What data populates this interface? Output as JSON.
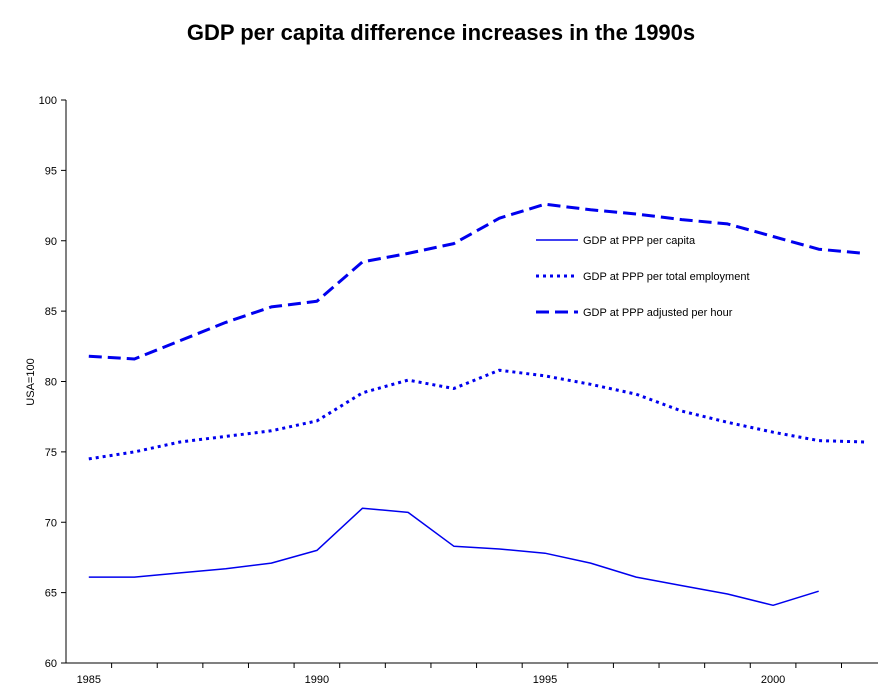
{
  "chart_data": {
    "type": "line",
    "title": "GDP per capita difference increases in the 1990s",
    "ylabel": "USA=100",
    "xlabel": "",
    "xlim": [
      1984.5,
      2002.3
    ],
    "ylim": [
      60,
      100
    ],
    "yticks": [
      60,
      65,
      70,
      75,
      80,
      85,
      90,
      95,
      100
    ],
    "xtick_labels": [
      1985,
      1990,
      1995,
      2000
    ],
    "xminor": [
      1985,
      1986,
      1987,
      1988,
      1989,
      1990,
      1991,
      1992,
      1993,
      1994,
      1995,
      1996,
      1997,
      1998,
      1999,
      2000,
      2001,
      2002
    ],
    "grid": false,
    "legend_position": "right",
    "series_color": "#0000ee",
    "series": [
      {
        "name": "GDP at PPP per capita",
        "style": "solid",
        "x": [
          1985,
          1986,
          1987,
          1988,
          1989,
          1990,
          1991,
          1992,
          1993,
          1994,
          1995,
          1996,
          1997,
          1998,
          1999,
          2000,
          2001
        ],
        "values": [
          66.1,
          66.1,
          66.4,
          66.7,
          67.1,
          68.0,
          71.0,
          70.7,
          68.3,
          68.1,
          67.8,
          67.1,
          66.1,
          65.5,
          64.9,
          64.1,
          65.1
        ]
      },
      {
        "name": "GDP at PPP per total employment",
        "style": "dotted",
        "x": [
          1985,
          1986,
          1987,
          1988,
          1989,
          1990,
          1991,
          1992,
          1993,
          1994,
          1995,
          1996,
          1997,
          1998,
          1999,
          2000,
          2001,
          2002
        ],
        "values": [
          74.5,
          75.0,
          75.7,
          76.1,
          76.5,
          77.2,
          79.2,
          80.1,
          79.5,
          80.8,
          80.4,
          79.8,
          79.1,
          77.9,
          77.1,
          76.4,
          75.8,
          75.7
        ]
      },
      {
        "name": "GDP at PPP adjusted per hour",
        "style": "dashed",
        "x": [
          1985,
          1986,
          1987,
          1988,
          1989,
          1990,
          1991,
          1992,
          1993,
          1994,
          1995,
          1996,
          1997,
          1998,
          1999,
          2000,
          2001,
          2002
        ],
        "values": [
          81.8,
          81.6,
          82.9,
          84.2,
          85.3,
          85.7,
          88.5,
          89.1,
          89.8,
          91.6,
          92.6,
          92.2,
          91.9,
          91.5,
          91.2,
          90.3,
          89.4,
          89.1
        ]
      }
    ]
  }
}
